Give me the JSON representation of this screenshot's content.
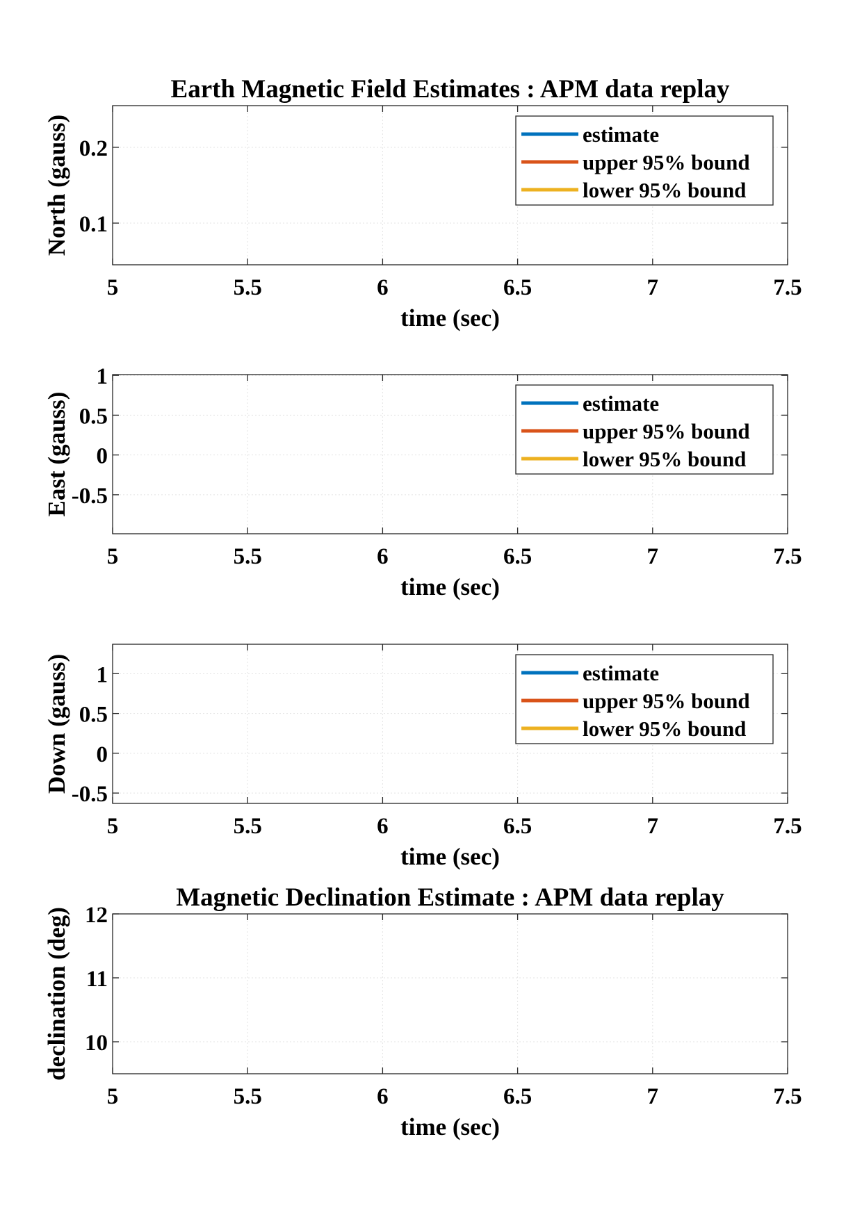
{
  "chart_data": [
    {
      "type": "line",
      "title": "Earth Magnetic Field Estimates : APM data replay",
      "xlabel": "time (sec)",
      "ylabel": "North (gauss)",
      "xlim": [
        5,
        7.5
      ],
      "ylim": [
        0.045,
        0.255
      ],
      "xticks": [
        "5",
        "5.5",
        "6",
        "6.5",
        "7",
        "7.5"
      ],
      "yticks": [
        "0.1",
        "0.2"
      ],
      "grid": true,
      "legend_position": "top-right",
      "series": [
        {
          "name": "estimate",
          "color": "#0072BD",
          "x": [],
          "y": []
        },
        {
          "name": "upper 95% bound",
          "color": "#D95319",
          "x": [],
          "y": []
        },
        {
          "name": "lower 95% bound",
          "color": "#EDB120",
          "x": [],
          "y": []
        }
      ]
    },
    {
      "type": "line",
      "title": "",
      "xlabel": "time (sec)",
      "ylabel": "East (gauss)",
      "xlim": [
        5,
        7.5
      ],
      "ylim": [
        -0.99,
        1.01
      ],
      "xticks": [
        "5",
        "5.5",
        "6",
        "6.5",
        "7",
        "7.5"
      ],
      "yticks": [
        "-0.5",
        "0",
        "0.5",
        "1"
      ],
      "grid": true,
      "legend_position": "top-right",
      "series": [
        {
          "name": "estimate",
          "color": "#0072BD",
          "x": [],
          "y": []
        },
        {
          "name": "upper 95% bound",
          "color": "#D95319",
          "x": [],
          "y": []
        },
        {
          "name": "lower 95% bound",
          "color": "#EDB120",
          "x": [],
          "y": []
        }
      ]
    },
    {
      "type": "line",
      "title": "",
      "xlabel": "time (sec)",
      "ylabel": "Down (gauss)",
      "xlim": [
        5,
        7.5
      ],
      "ylim": [
        -0.63,
        1.37
      ],
      "xticks": [
        "5",
        "5.5",
        "6",
        "6.5",
        "7",
        "7.5"
      ],
      "yticks": [
        "-0.5",
        "0",
        "0.5",
        "1"
      ],
      "grid": true,
      "legend_position": "top-right",
      "series": [
        {
          "name": "estimate",
          "color": "#0072BD",
          "x": [],
          "y": []
        },
        {
          "name": "upper 95% bound",
          "color": "#D95319",
          "x": [],
          "y": []
        },
        {
          "name": "lower 95% bound",
          "color": "#EDB120",
          "x": [],
          "y": []
        }
      ]
    },
    {
      "type": "line",
      "title": "Magnetic Declination Estimate : APM data replay",
      "xlabel": "time (sec)",
      "ylabel": "declination (deg)",
      "xlim": [
        5,
        7.5
      ],
      "ylim": [
        9.5,
        12
      ],
      "xticks": [
        "5",
        "5.5",
        "6",
        "6.5",
        "7",
        "7.5"
      ],
      "yticks": [
        "10",
        "11",
        "12"
      ],
      "grid": true,
      "series": []
    }
  ]
}
